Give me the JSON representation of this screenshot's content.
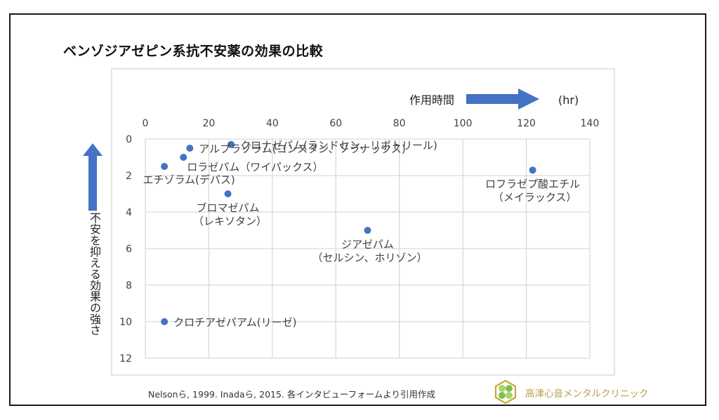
{
  "page": {
    "title": "ベンゾジアゼピン系抗不安薬の効果の比較",
    "source": "Nelsonら, 1999. Inadaら, 2015. 各インタビューフォームより引用作成",
    "clinic_name": "高津心音メンタルクリニック",
    "logo_icon": "clover-hexagon-logo"
  },
  "colors": {
    "marker": "#4472c4",
    "arrow": "#4472c4",
    "grid": "#d9d9d9",
    "clinic_text": "#b8a24a"
  },
  "chart_data": {
    "type": "scatter",
    "title": "ベンゾジアゼピン系抗不安薬の効果の比較",
    "xlabel": "作用時間",
    "xunit": "(hr)",
    "ylabel": "不安を抑える効果の強さ",
    "xlim": [
      0,
      140
    ],
    "ylim": [
      0,
      12
    ],
    "y_inverted": true,
    "x_axis_position": "top",
    "grid": true,
    "xticks": [
      "0",
      "20",
      "40",
      "60",
      "80",
      "100",
      "120",
      "140"
    ],
    "yticks": [
      "0",
      "2",
      "4",
      "6",
      "8",
      "10",
      "12"
    ],
    "points": [
      {
        "name": "クロナゼパム(ランドセン、リボトリール)",
        "lines": [
          "クロナゼパム(ランドセン、リボトリール)"
        ],
        "x": 27,
        "y": 0.3,
        "label_pos": "right"
      },
      {
        "name": "アルプラゾラム(コンスタン、ソラナックス)",
        "lines": [
          "アルプラゾラム(コンスタン、ソラナックス)"
        ],
        "x": 14,
        "y": 0.5,
        "label_pos": "right"
      },
      {
        "name": "ロラゼパム（ワイパックス）",
        "lines": [
          "ロラゼパム（ワイパックス）"
        ],
        "x": 12,
        "y": 1.0,
        "label_pos": "right-below"
      },
      {
        "name": "エチゾラム(デパス)",
        "lines": [
          "エチゾラム(デパス)"
        ],
        "x": 6,
        "y": 1.5,
        "label_pos": "below"
      },
      {
        "name": "ブロマゼパム（レキソタン）",
        "lines": [
          "ブロマゼパム",
          "（レキソタン）"
        ],
        "x": 26,
        "y": 3.0,
        "label_pos": "below"
      },
      {
        "name": "ジアゼパム（セルシン、ホリゾン）",
        "lines": [
          "ジアゼパム",
          "（セルシン、ホリゾン）"
        ],
        "x": 70,
        "y": 5.0,
        "label_pos": "below"
      },
      {
        "name": "ロフラゼプ酸エチル（メイラックス）",
        "lines": [
          "ロフラゼプ酸エチル",
          "（メイラックス）"
        ],
        "x": 122,
        "y": 1.7,
        "label_pos": "below"
      },
      {
        "name": "クロチアゼパアム(リーゼ)",
        "lines": [
          "クロチアゼパアム(リーゼ)"
        ],
        "x": 6,
        "y": 10.0,
        "label_pos": "right"
      }
    ]
  }
}
